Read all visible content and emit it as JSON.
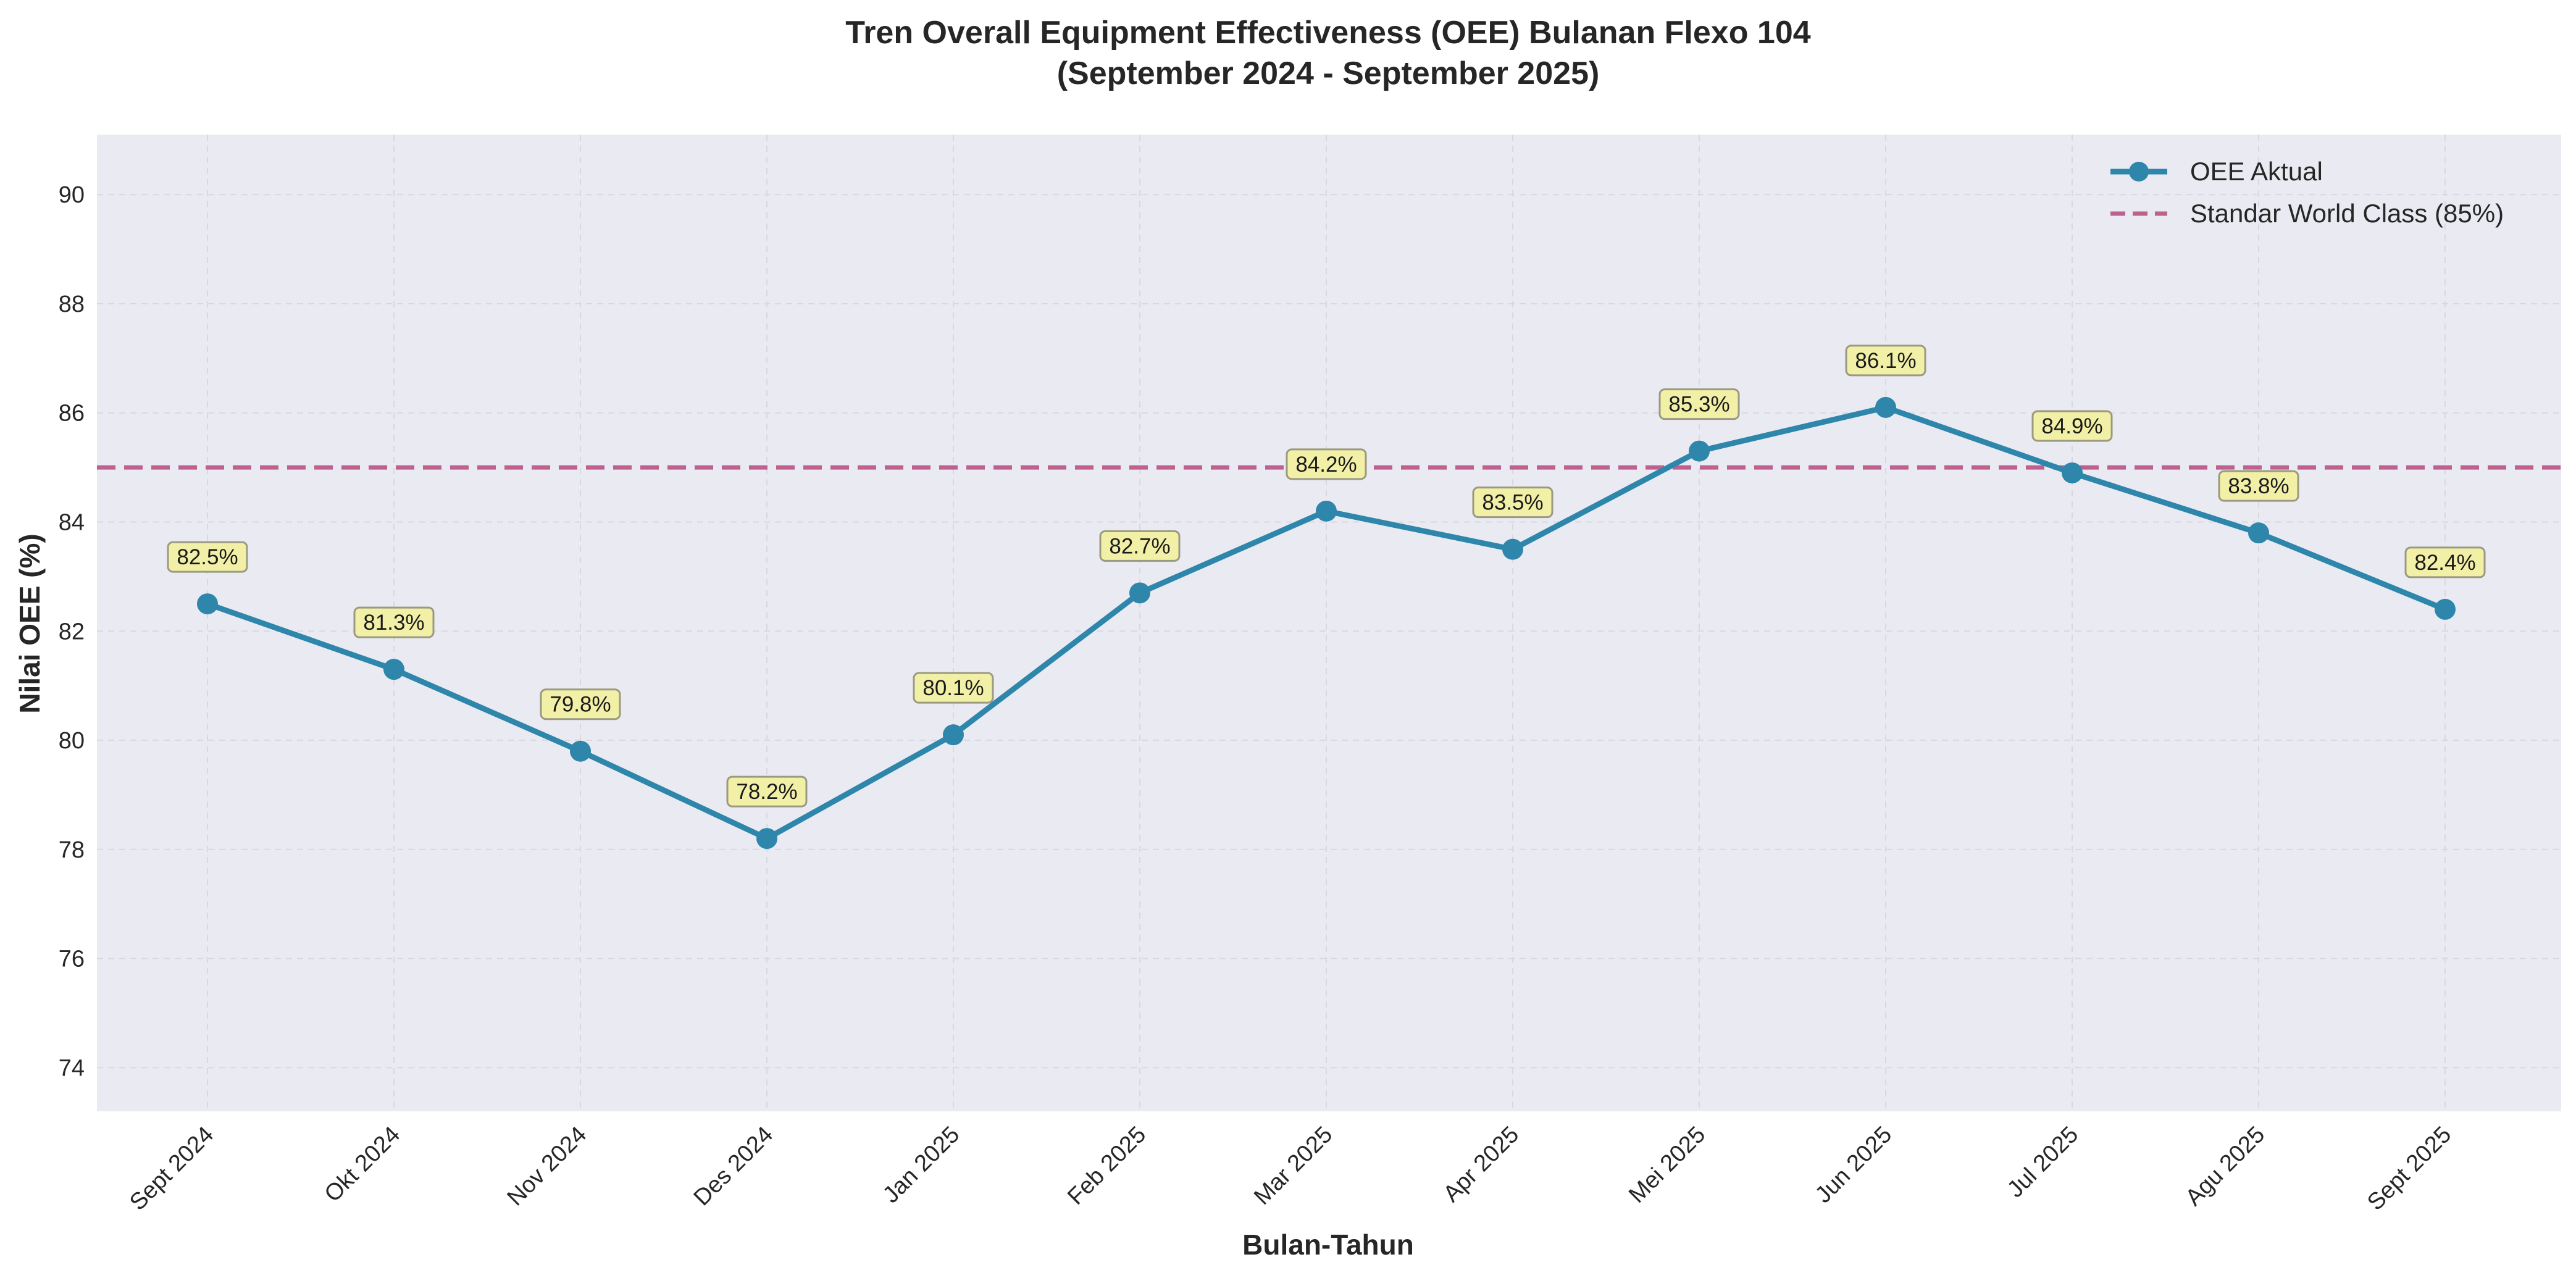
{
  "chart_data": {
    "type": "line",
    "title": "Tren Overall Equipment Effectiveness (OEE) Bulanan Flexo 104",
    "subtitle": "(September 2024 - September 2025)",
    "xlabel": "Bulan-Tahun",
    "ylabel": "Nilai OEE (%)",
    "ylim": [
      73.2,
      91.1
    ],
    "yticks": [
      74,
      76,
      78,
      80,
      82,
      84,
      86,
      88,
      90
    ],
    "grid": true,
    "legend_position": "top-right",
    "categories": [
      "Sept 2024",
      "Okt 2024",
      "Nov 2024",
      "Des 2024",
      "Jan 2025",
      "Feb 2025",
      "Mar 2025",
      "Apr 2025",
      "Mei 2025",
      "Jun 2025",
      "Jul 2025",
      "Agu 2025",
      "Sept 2025"
    ],
    "series": [
      {
        "name": "OEE Aktual",
        "values": [
          82.5,
          81.3,
          79.8,
          78.2,
          80.1,
          82.7,
          84.2,
          83.5,
          85.3,
          86.1,
          84.9,
          83.8,
          82.4
        ],
        "labels": [
          "82.5%",
          "81.3%",
          "79.8%",
          "78.2%",
          "80.1%",
          "82.7%",
          "84.2%",
          "83.5%",
          "85.3%",
          "86.1%",
          "84.9%",
          "83.8%",
          "82.4%"
        ],
        "color": "#2E86AB"
      }
    ],
    "reference_line": {
      "name": "Standar World Class (85%)",
      "value": 85,
      "color": "#C06090"
    },
    "colors": {
      "plot_background": "#EAEAF2",
      "grid": "#D8D8E0",
      "label_box_fill": "#F2EFA6",
      "label_box_stroke": "#9A9A80"
    }
  }
}
